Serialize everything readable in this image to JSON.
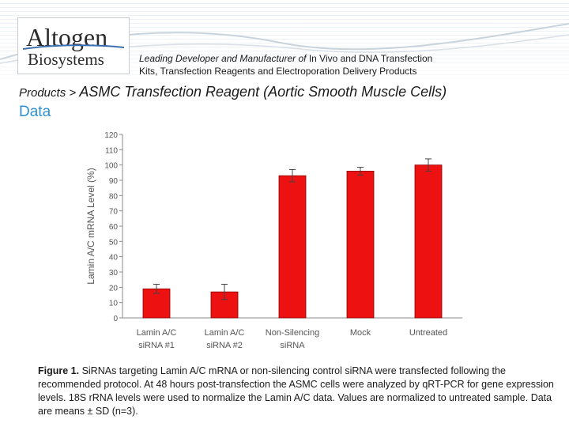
{
  "header": {
    "logo_line1": "Altogen",
    "logo_line2": "Biosystems",
    "tagline_part1": "Leading Developer and Manufacturer of ",
    "tagline_part2": "In Vivo and DNA Transfection",
    "tagline_part3": "Kits, Transfection Reagents and Electroporation Delivery Products"
  },
  "breadcrumb": {
    "products": "Products",
    "separator": " > ",
    "page": "ASMC Transfection Reagent (Aortic Smooth Muscle Cells)"
  },
  "section_title": "Data",
  "chart_data": {
    "type": "bar",
    "categories": [
      [
        "Lamin A/C",
        "siRNA #1"
      ],
      [
        "Lamin A/C",
        "siRNA #2"
      ],
      [
        "Non-Silencing",
        "siRNA"
      ],
      [
        "Mock"
      ],
      [
        "Untreated"
      ]
    ],
    "values": [
      19,
      17,
      93,
      96,
      100
    ],
    "errors": [
      3,
      5,
      4,
      2.5,
      4
    ],
    "ylabel": "Lamin A/C mRNA Level (%)",
    "ylim": [
      0,
      120
    ],
    "ytick_step": 10,
    "bar_color": "#ee1111",
    "bar_edge_color": "#8b0000",
    "axis_color": "#888888",
    "label_color": "#555555"
  },
  "caption": {
    "label": "Figure 1.",
    "text": " SiRNAs targeting Lamin A/C mRNA or non-silencing control siRNA were transfected following the recommended protocol. At 48 hours post-transfection the ASMC cells were analyzed by qRT-PCR for gene expression levels. 18S rRNA levels were used to normalize the Lamin A/C data. Values are normalized to untreated sample. Data are means ± SD (n=3)."
  }
}
